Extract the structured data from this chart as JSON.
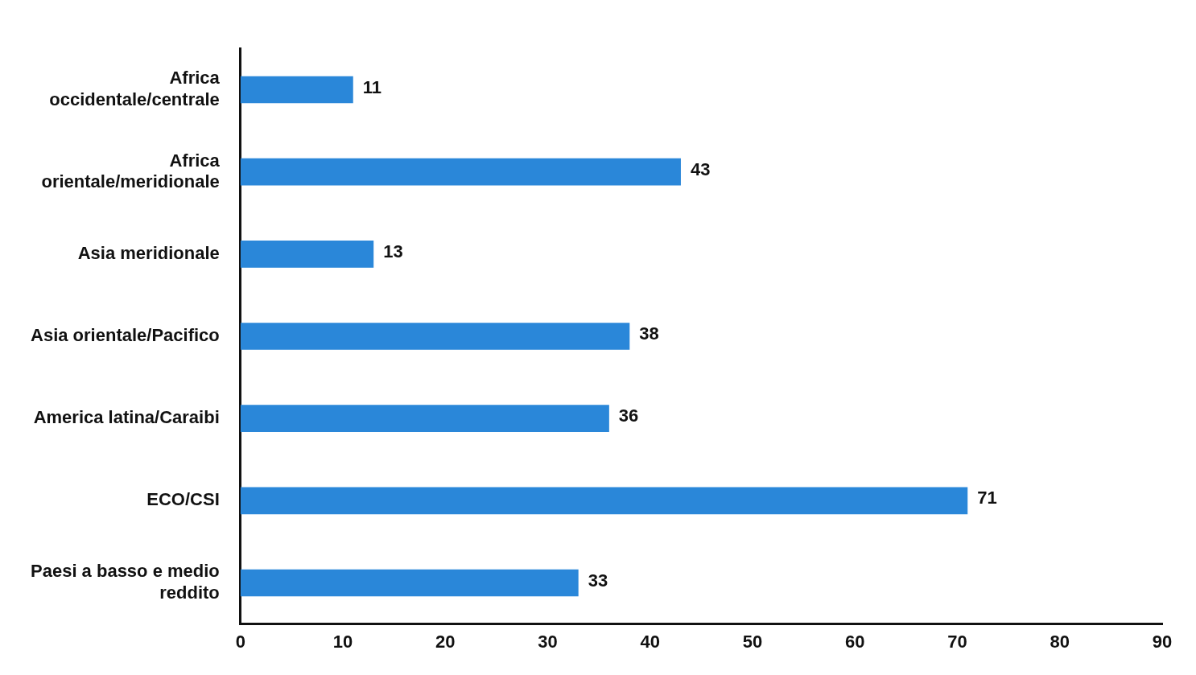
{
  "chart_data": {
    "type": "bar",
    "orientation": "horizontal",
    "categories": [
      "Africa occidentale/centrale",
      "Africa orientale/meridionale",
      "Asia meridionale",
      "Asia orientale/Pacifico",
      "America latina/Caraibi",
      "ECO/CSI",
      "Paesi a basso e medio reddito"
    ],
    "values": [
      11,
      43,
      13,
      38,
      36,
      71,
      33
    ],
    "color": "#2a87d9",
    "xlim": [
      0,
      90
    ],
    "xticks": [
      0,
      10,
      20,
      30,
      40,
      50,
      60,
      70,
      80,
      90
    ],
    "grid": false,
    "legend": false,
    "data_labels": true
  }
}
